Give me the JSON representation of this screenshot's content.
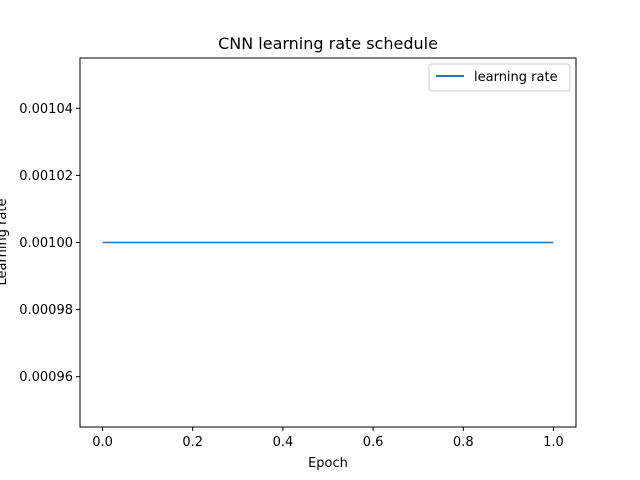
{
  "chart_data": {
    "type": "line",
    "title": "CNN learning rate schedule",
    "xlabel": "Epoch",
    "ylabel": "Learning rate",
    "xlim": [
      -0.05,
      1.05
    ],
    "ylim": [
      0.000945,
      0.001055
    ],
    "x_ticks": [
      0.0,
      0.2,
      0.4,
      0.6,
      0.8,
      1.0
    ],
    "x_tick_labels": [
      "0.0",
      "0.2",
      "0.4",
      "0.6",
      "0.8",
      "1.0"
    ],
    "y_ticks": [
      0.00096,
      0.00098,
      0.001,
      0.00102,
      0.00104
    ],
    "y_tick_labels": [
      "0.00096",
      "0.00098",
      "0.00100",
      "0.00102",
      "0.00104"
    ],
    "grid": false,
    "legend_position": "top-right",
    "series": [
      {
        "name": "learning rate",
        "color": "#1f77b4",
        "x": [
          0.0,
          1.0
        ],
        "y": [
          0.001,
          0.001
        ]
      }
    ]
  }
}
